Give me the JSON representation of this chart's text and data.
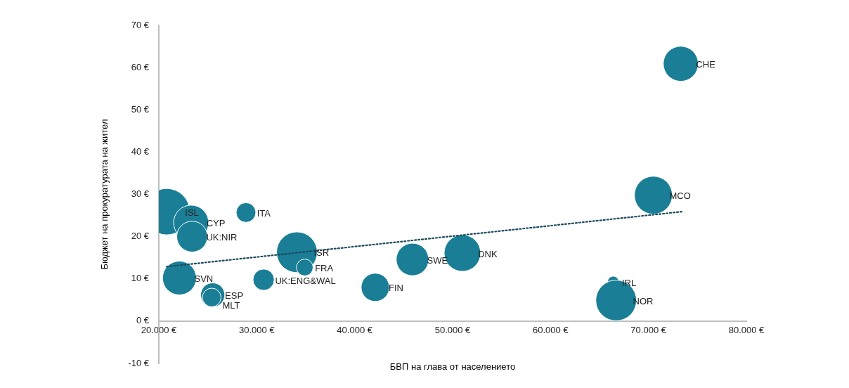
{
  "chart_data": {
    "type": "bubble",
    "xlabel": "БВП на глава от населението",
    "ylabel": "Бюджет на прокуратурата на жител",
    "xlim": [
      20000,
      80000
    ],
    "xticks": [
      {
        "value": 20000,
        "label": "20.000 €"
      },
      {
        "value": 30000,
        "label": "30.000 €"
      },
      {
        "value": 40000,
        "label": "40.000 €"
      },
      {
        "value": 50000,
        "label": "50.000 €"
      },
      {
        "value": 60000,
        "label": "60.000 €"
      },
      {
        "value": 70000,
        "label": "70.000 €"
      },
      {
        "value": 80000,
        "label": "80.000 €"
      }
    ],
    "ylim": [
      -10,
      70
    ],
    "yticks": [
      {
        "value": -10,
        "label": "-10 €"
      },
      {
        "value": 0,
        "label": "0 €"
      },
      {
        "value": 10,
        "label": "10 €"
      },
      {
        "value": 20,
        "label": "20 €"
      },
      {
        "value": 30,
        "label": "30 €"
      },
      {
        "value": 40,
        "label": "40 €"
      },
      {
        "value": 50,
        "label": "50 €"
      },
      {
        "value": 60,
        "label": "60 €"
      },
      {
        "value": 70,
        "label": "70 €"
      }
    ],
    "grid": false,
    "legend": false,
    "series": [
      {
        "type": "bubble",
        "color": "#1a7f96",
        "x": [
          20800,
          23300,
          23400,
          28900,
          22100,
          25500,
          25400,
          30700,
          34100,
          34900,
          42100,
          45900,
          51000,
          73300,
          70500,
          66400,
          66700
        ],
        "values": [
          25.9,
          23.3,
          20,
          25.7,
          10.2,
          6.2,
          5.6,
          9.8,
          16.3,
          12.7,
          8,
          14.6,
          16.1,
          60.9,
          29.8,
          9.3,
          4.9
        ],
        "sizes": [
          1,
          0.57,
          0.44,
          0.18,
          0.53,
          0.27,
          0.16,
          0.21,
          0.77,
          0.13,
          0.37,
          0.49,
          0.62,
          0.57,
          0.67,
          0.06,
          0.77
        ]
      },
      {
        "type": "line",
        "color": "#1b4a5e",
        "line_style": "dotted",
        "marker": "none",
        "x": [
          20800,
          73400
        ],
        "values": [
          12.9,
          25.9
        ]
      }
    ],
    "annotations": [
      {
        "text": "ISL",
        "x": 20800,
        "y": 25.9
      },
      {
        "text": "CYP",
        "x": 23300,
        "y": 23.3
      },
      {
        "text": "UK:NIR",
        "x": 23400,
        "y": 20
      },
      {
        "text": "ITA",
        "x": 28900,
        "y": 25.7
      },
      {
        "text": "SVN",
        "x": 22100,
        "y": 10.2
      },
      {
        "text": "ESP",
        "x": 25500,
        "y": 6.2
      },
      {
        "text": "MLT",
        "x": 25400,
        "y": 5.6
      },
      {
        "text": "UK:ENG&WAL",
        "x": 30700,
        "y": 9.8
      },
      {
        "text": "ISR",
        "x": 34100,
        "y": 16.3
      },
      {
        "text": "FRA",
        "x": 34900,
        "y": 12.7
      },
      {
        "text": "FIN",
        "x": 42100,
        "y": 8
      },
      {
        "text": "SWE",
        "x": 45900,
        "y": 14.6
      },
      {
        "text": "DNK",
        "x": 51000,
        "y": 16.1
      },
      {
        "text": "CHE",
        "x": 73300,
        "y": 60.9
      },
      {
        "text": "MCO",
        "x": 70500,
        "y": 29.8
      },
      {
        "text": "IRL",
        "x": 66400,
        "y": 9.3
      },
      {
        "text": "NOR",
        "x": 66700,
        "y": 4.9
      }
    ]
  }
}
